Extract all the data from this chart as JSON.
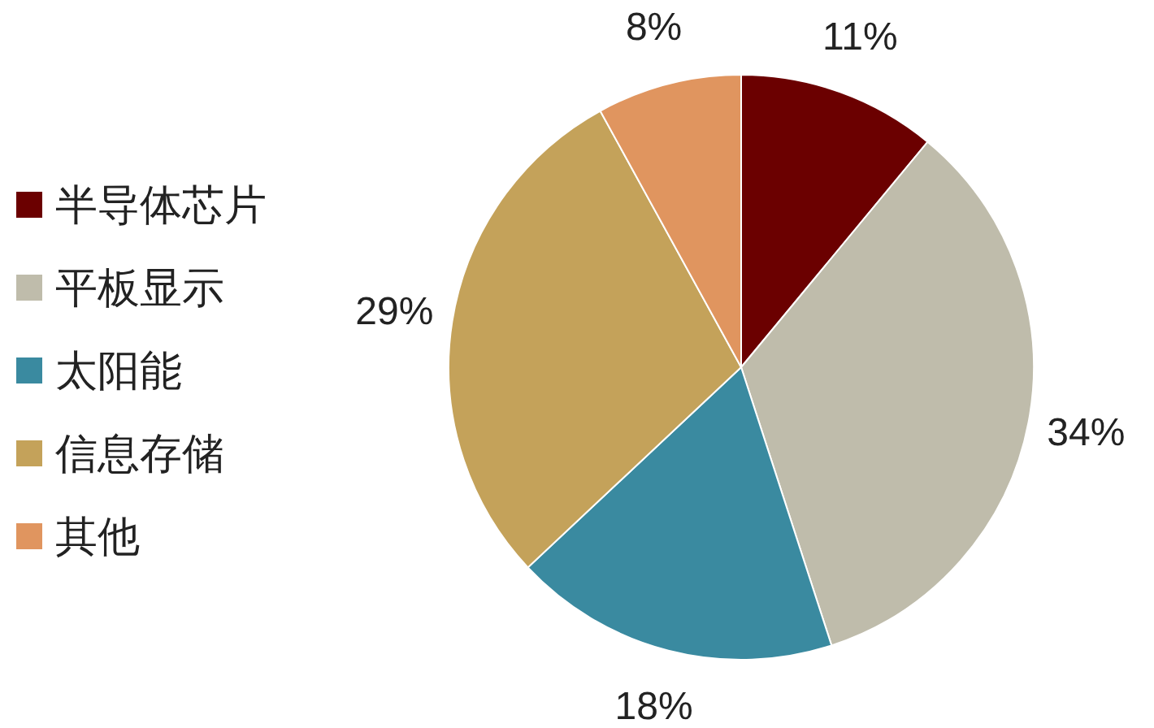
{
  "chart_data": {
    "type": "pie",
    "categories": [
      "半导体芯片",
      "平板显示",
      "太阳能",
      "信息存储",
      "其他"
    ],
    "values": [
      11,
      34,
      18,
      29,
      8
    ],
    "colors": [
      "#6b0000",
      "#bfbcab",
      "#3a8aa0",
      "#c4a25a",
      "#e0955f"
    ],
    "value_labels": [
      "11%",
      "34%",
      "18%",
      "29%",
      "8%"
    ],
    "legend": "left"
  }
}
